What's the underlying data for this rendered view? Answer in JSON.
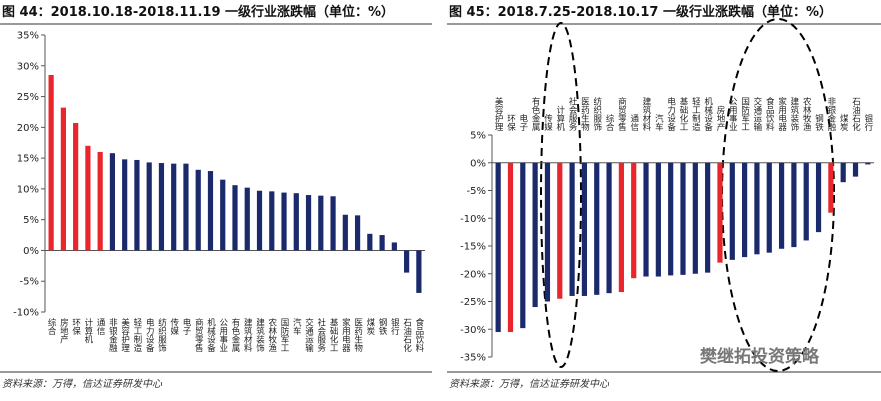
{
  "chart_data": [
    {
      "type": "bar",
      "title": "图 44：2018.10.18-2018.11.19 一级行业涨跌幅（单位：%）",
      "source": "资料来源：万得，信达证券研发中心",
      "categories": [
        "综合",
        "房地产",
        "环保",
        "计算机",
        "通信",
        "非银金融",
        "美容护理",
        "轻工制造",
        "电力设备",
        "纺织服饰",
        "传媒",
        "电子",
        "商贸零售",
        "机械设备",
        "公用事业",
        "有色金属",
        "建筑材料",
        "建筑装饰",
        "农林牧渔",
        "国防军工",
        "汽车",
        "交通运输",
        "社会服务",
        "基础化工",
        "家用电器",
        "医药生物",
        "煤炭",
        "钢铁",
        "银行",
        "石油石化",
        "食品饮料"
      ],
      "values": [
        28.5,
        23.2,
        20.7,
        17,
        16,
        15.8,
        14.8,
        14.7,
        14.3,
        14.2,
        14.1,
        14.1,
        13.1,
        12.9,
        11.5,
        10.6,
        10.2,
        9.7,
        9.6,
        9.4,
        9.3,
        9.0,
        8.9,
        8.8,
        5.8,
        5.7,
        2.7,
        2.5,
        1.3,
        -3.6,
        -6.9
      ],
      "colors": [
        "#e8262b",
        "#e8262b",
        "#e8262b",
        "#e8262b",
        "#e8262b",
        "#1b2a6b",
        "#1b2a6b",
        "#1b2a6b",
        "#1b2a6b",
        "#1b2a6b",
        "#1b2a6b",
        "#1b2a6b",
        "#1b2a6b",
        "#1b2a6b",
        "#1b2a6b",
        "#1b2a6b",
        "#1b2a6b",
        "#1b2a6b",
        "#1b2a6b",
        "#1b2a6b",
        "#1b2a6b",
        "#1b2a6b",
        "#1b2a6b",
        "#1b2a6b",
        "#1b2a6b",
        "#1b2a6b",
        "#1b2a6b",
        "#1b2a6b",
        "#1b2a6b",
        "#1b2a6b",
        "#1b2a6b"
      ],
      "ylim": [
        -10,
        35
      ],
      "yticks": [
        {
          "value": -10,
          "label": "-10%"
        },
        {
          "value": -5,
          "label": "-5%"
        },
        {
          "value": 0,
          "label": "0%"
        },
        {
          "value": 5,
          "label": "5%"
        },
        {
          "value": 10,
          "label": "10%"
        },
        {
          "value": 15,
          "label": "15%"
        },
        {
          "value": 20,
          "label": "20%"
        },
        {
          "value": 25,
          "label": "25%"
        },
        {
          "value": 30,
          "label": "30%"
        },
        {
          "value": 35,
          "label": "35%"
        }
      ]
    },
    {
      "type": "bar",
      "title": "图 45：2018.7.25-2018.10.17 一级行业涨跌幅（单位：%）",
      "source": "资料来源：万得，信达证券研发中心",
      "watermark": "樊继拓投资策略",
      "categories": [
        "美容护理",
        "环保",
        "电子",
        "有色金属",
        "传媒",
        "计算机",
        "社会服务",
        "医药生物",
        "纺织服饰",
        "综合",
        "商贸零售",
        "通信",
        "建筑材料",
        "汽车",
        "电力设备",
        "基础化工",
        "轻工制造",
        "机械设备",
        "房地产",
        "公用事业",
        "国防军工",
        "交通运输",
        "食品饮料",
        "家用电器",
        "建筑装饰",
        "农林牧渔",
        "钢铁",
        "非银金融",
        "煤炭",
        "石油石化",
        "银行"
      ],
      "values": [
        -30.5,
        -30.5,
        -29.8,
        -26,
        -25,
        -24.5,
        -24,
        -24,
        -23.8,
        -23.5,
        -23.3,
        -20.8,
        -20.5,
        -20.5,
        -20.3,
        -20.2,
        -20,
        -19.8,
        -18,
        -17.5,
        -17,
        -16.5,
        -16.2,
        -15.5,
        -15.2,
        -14,
        -12.5,
        -9,
        -3.5,
        -2.5,
        -0.3
      ],
      "colors": [
        "#1b2a6b",
        "#e8262b",
        "#1b2a6b",
        "#1b2a6b",
        "#1b2a6b",
        "#e8262b",
        "#1b2a6b",
        "#1b2a6b",
        "#1b2a6b",
        "#1b2a6b",
        "#e8262b",
        "#e8262b",
        "#1b2a6b",
        "#1b2a6b",
        "#1b2a6b",
        "#1b2a6b",
        "#1b2a6b",
        "#1b2a6b",
        "#e8262b",
        "#1b2a6b",
        "#1b2a6b",
        "#1b2a6b",
        "#1b2a6b",
        "#1b2a6b",
        "#1b2a6b",
        "#1b2a6b",
        "#1b2a6b",
        "#e8262b",
        "#1b2a6b",
        "#1b2a6b",
        "#1b2a6b"
      ],
      "ylim": [
        -35,
        5
      ],
      "yticks": [
        {
          "value": -35,
          "label": "-35%"
        },
        {
          "value": -30,
          "label": "-30%"
        },
        {
          "value": -25,
          "label": "-25%"
        },
        {
          "value": -20,
          "label": "-20%"
        },
        {
          "value": -15,
          "label": "-15%"
        },
        {
          "value": -10,
          "label": "-10%"
        },
        {
          "value": -5,
          "label": "-5%"
        },
        {
          "value": 0,
          "label": "0%"
        },
        {
          "value": 5,
          "label": "5%"
        }
      ]
    }
  ]
}
